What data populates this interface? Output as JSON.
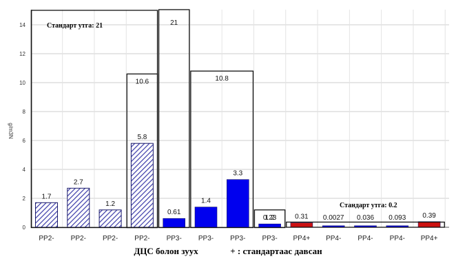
{
  "chart_data": {
    "type": "bar",
    "ylabel": "g/m3N",
    "ylim": [
      0,
      15
    ],
    "yticks": [
      0,
      2,
      4,
      6,
      8,
      10,
      12,
      14
    ],
    "grid": true,
    "categories": [
      "PP2-",
      "PP2-",
      "PP2-",
      "PP2-",
      "PP3-",
      "PP3-",
      "PP3-",
      "PP3-",
      "PP4+",
      "PP4-",
      "PP4-",
      "PP4-",
      "PP4+"
    ],
    "values": [
      1.7,
      2.7,
      1.2,
      5.8,
      0.61,
      1.4,
      3.3,
      0.23,
      0.31,
      0.0027,
      0.036,
      0.093,
      0.39
    ],
    "value_labels": [
      "1.7",
      "2.7",
      "1.2",
      "5.8",
      "0.61",
      "1.4",
      "3.3",
      "0.23",
      "0.31",
      "0.0027",
      "0.036",
      "0.093",
      "0.39"
    ],
    "bar_styles": [
      "hatched",
      "hatched",
      "hatched",
      "hatched",
      "blue",
      "blue",
      "blue",
      "blue",
      "red",
      "blue",
      "blue",
      "blue",
      "red"
    ],
    "standards": [
      {
        "from": 0,
        "to": 3,
        "value": 15,
        "label": ""
      },
      {
        "from": 3,
        "to": 3,
        "value": 10.6,
        "label": "10.6"
      },
      {
        "from": 4,
        "to": 4,
        "value": 21,
        "label": "21"
      },
      {
        "from": 5,
        "to": 6,
        "value": 10.8,
        "label": "10.8"
      },
      {
        "from": 7,
        "to": 7,
        "value": 1.2,
        "label": "1.2"
      },
      {
        "from": 8,
        "to": 12,
        "value": 0.2,
        "label": ""
      }
    ],
    "annotations": {
      "standard_21": "Стандарт утга: 21",
      "standard_02": "Стандарт утга: 0.2"
    },
    "colors": {
      "hatch": "#3a3aa8",
      "blue": "#0000ee",
      "red": "#cc1111",
      "grid": "#cccccc"
    }
  },
  "caption": {
    "left": "ДЦС болон зуух",
    "right": "+ : стандартаас давсан"
  }
}
